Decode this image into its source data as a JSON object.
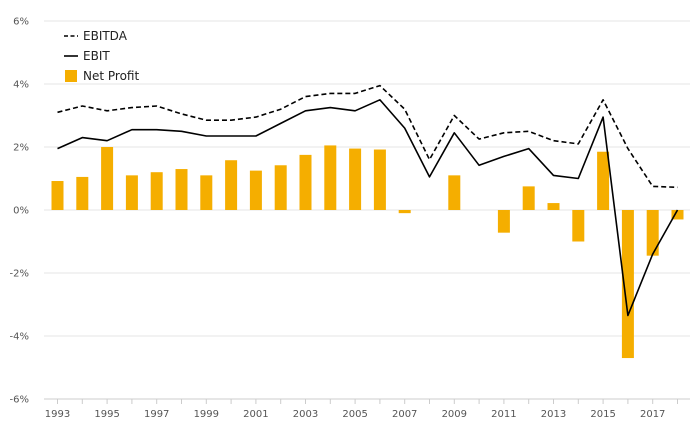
{
  "chart_data": {
    "type": "bar",
    "title": "",
    "xlabel": "",
    "ylabel": "",
    "x": [
      1993,
      1994,
      1995,
      1996,
      1997,
      1998,
      1999,
      2000,
      2001,
      2002,
      2003,
      2004,
      2005,
      2006,
      2007,
      2008,
      2009,
      2010,
      2011,
      2012,
      2013,
      2014,
      2015,
      2016,
      2017,
      2018
    ],
    "x_tick_labels": [
      "1993",
      "1995",
      "1997",
      "1999",
      "2001",
      "2003",
      "2005",
      "2007",
      "2009",
      "2011",
      "2013",
      "2015",
      "2017"
    ],
    "y_ticks": [
      6,
      4,
      2,
      0,
      -2,
      -4,
      -6
    ],
    "y_tick_labels": [
      "6%",
      "4%",
      "2%",
      "0%",
      "-2%",
      "-4%",
      "-6%"
    ],
    "ylim": [
      -6,
      6
    ],
    "grid": true,
    "legend_placement": "top-left",
    "series": [
      {
        "name": "EBITDA",
        "type": "line",
        "style": "dashed",
        "color": "#000000",
        "values": [
          3.1,
          3.3,
          3.15,
          3.25,
          3.3,
          3.05,
          2.85,
          2.85,
          2.95,
          3.2,
          3.6,
          3.7,
          3.7,
          3.95,
          3.2,
          1.6,
          3.0,
          2.25,
          2.45,
          2.5,
          2.2,
          2.1,
          3.5,
          1.95,
          0.75,
          0.72
        ]
      },
      {
        "name": "EBIT",
        "type": "line",
        "style": "solid",
        "color": "#000000",
        "values": [
          1.95,
          2.3,
          2.2,
          2.55,
          2.55,
          2.5,
          2.35,
          2.35,
          2.35,
          2.75,
          3.15,
          3.25,
          3.15,
          3.5,
          2.6,
          1.05,
          2.45,
          1.42,
          1.7,
          1.95,
          1.1,
          1.0,
          2.95,
          -3.35,
          -1.4,
          0.0
        ]
      },
      {
        "name": "Net Profit",
        "type": "bar",
        "color": "#f5ae00",
        "values": [
          0.92,
          1.05,
          2.0,
          1.1,
          1.2,
          1.3,
          1.1,
          1.58,
          1.25,
          1.42,
          1.75,
          2.05,
          1.95,
          1.92,
          -0.1,
          null,
          1.1,
          null,
          -0.72,
          0.75,
          0.22,
          -1.0,
          1.85,
          -4.7,
          -1.45,
          -0.3
        ]
      }
    ]
  }
}
